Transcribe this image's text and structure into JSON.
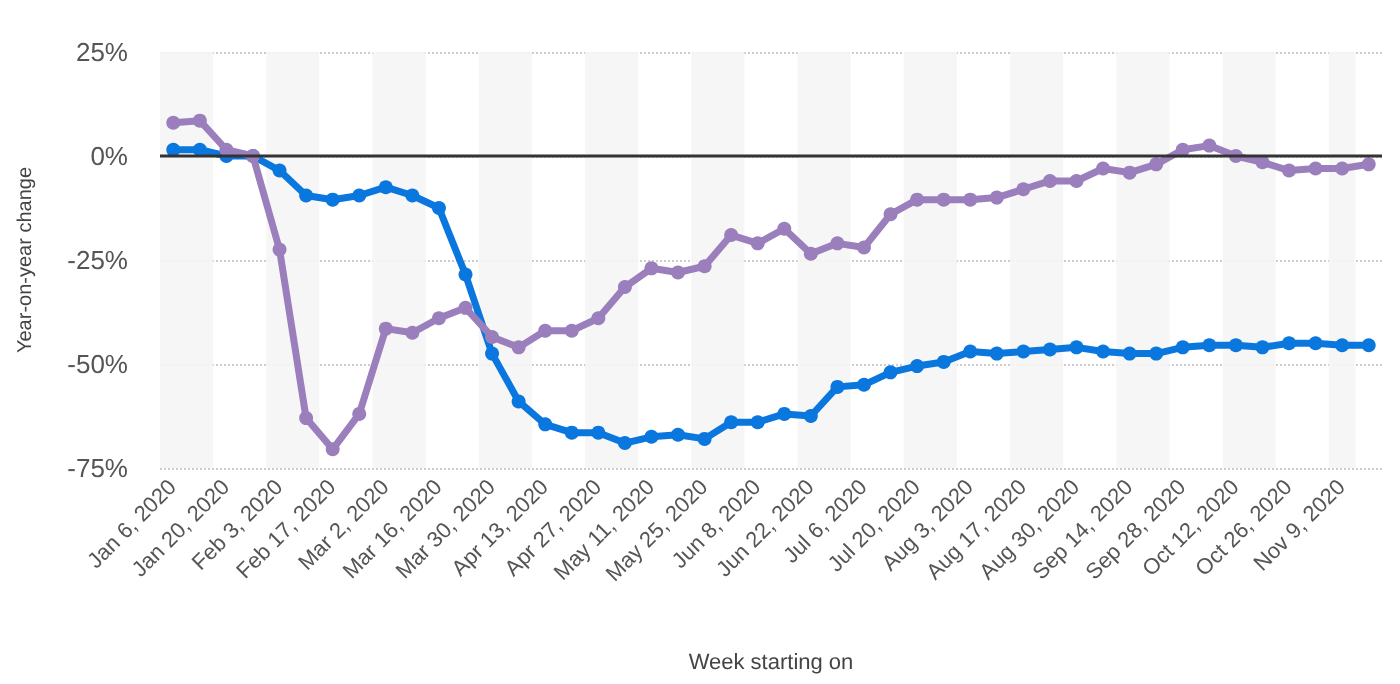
{
  "chart_data": {
    "type": "line",
    "xlabel": "Week starting on",
    "ylabel": "Year-on-year change",
    "categories": [
      "Jan 6, 2020",
      null,
      "Jan 20, 2020",
      null,
      "Feb 3, 2020",
      null,
      "Feb 17, 2020",
      null,
      "Mar 2, 2020",
      null,
      "Mar 16, 2020",
      null,
      "Mar 30, 2020",
      null,
      "Apr 13, 2020",
      null,
      "Apr 27, 2020",
      null,
      "May 11, 2020",
      null,
      "May 25, 2020",
      null,
      "Jun 8, 2020",
      null,
      "Jun 22, 2020",
      null,
      "Jul 6, 2020",
      null,
      "Jul 20, 2020",
      null,
      "Aug 3, 2020",
      null,
      "Aug 17, 2020",
      null,
      "Aug 30, 2020",
      null,
      "Sep 14, 2020",
      null,
      "Sep 28, 2020",
      null,
      "Oct 12, 2020",
      null,
      "Oct 26, 2020",
      null,
      "Nov 9, 2020",
      null
    ],
    "series": [
      {
        "color": "#0a77de",
        "values": [
          1.5,
          1.5,
          0,
          0,
          -3.5,
          -9.5,
          -10.5,
          -9.5,
          -7.5,
          -9.5,
          -12.5,
          -28.5,
          -47.5,
          -59,
          -64.5,
          -66.5,
          -66.5,
          -69,
          -67.5,
          -67,
          -68,
          -64,
          -64,
          -62,
          -62.5,
          -55.5,
          -55,
          -52,
          -50.5,
          -49.5,
          -47,
          -47.5,
          -47,
          -46.5,
          -46,
          -47,
          -47.5,
          -47.5,
          -46,
          -45.5,
          -45.5,
          -46,
          -45,
          -45,
          -45.5,
          -45.5
        ]
      },
      {
        "color": "#9b7fbd",
        "values": [
          8,
          8.5,
          1.5,
          0,
          -22.5,
          -63,
          -70.5,
          -62,
          -41.5,
          -42.5,
          -39,
          -36.5,
          -43.5,
          -46,
          -42,
          -42,
          -39,
          -31.5,
          -27,
          -28,
          -26.5,
          -19,
          -21,
          -17.5,
          -23.5,
          -21,
          -22,
          -14,
          -10.5,
          -10.5,
          -10.5,
          -10,
          -8,
          -6,
          -6,
          -3,
          -4,
          -2,
          1.5,
          2.5,
          0,
          -1.5,
          -3.5,
          -3,
          -3,
          -2
        ]
      }
    ],
    "ylim": [
      -75,
      25
    ],
    "yticks": [
      {
        "value": -75,
        "label": "-75%"
      },
      {
        "value": -50,
        "label": "-50%"
      },
      {
        "value": -25,
        "label": "-25%"
      },
      {
        "value": 0,
        "label": "0%"
      },
      {
        "value": 25,
        "label": "25%"
      }
    ],
    "ref_lines": [
      {
        "axis": "y",
        "value": 0,
        "color": "#333333"
      }
    ],
    "grid": "y",
    "marker": "circle",
    "line_style": "solid"
  }
}
